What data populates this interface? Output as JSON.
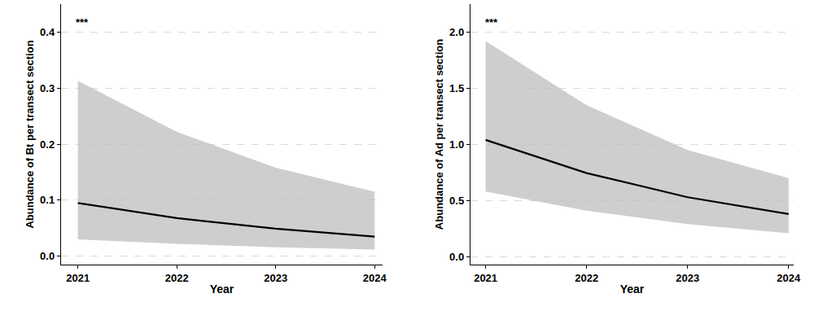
{
  "chart_data": [
    {
      "type": "line",
      "y_label": "Abundance of Bt per transect section",
      "x_label": "Year",
      "annotation": "***",
      "x": [
        2021,
        2022,
        2023,
        2024
      ],
      "xlim": [
        2020.83,
        2024.08
      ],
      "xticks": [
        2021,
        2022,
        2023,
        2024
      ],
      "ylim": [
        -0.015,
        0.45
      ],
      "yticks": [
        {
          "value": 0,
          "label": "0.0"
        },
        0.1,
        0.2,
        0.3,
        0.4
      ],
      "grid": true,
      "series": [
        {
          "color": "#000000",
          "values": [
            0.095,
            0.068,
            0.049,
            0.035
          ],
          "lower": [
            0.03,
            0.022,
            0.016,
            0.012
          ],
          "upper": [
            0.313,
            0.222,
            0.158,
            0.115
          ]
        }
      ]
    },
    {
      "type": "line",
      "y_label": "Abundance of Ad per transect section",
      "x_label": "Year",
      "annotation": "***",
      "x": [
        2021,
        2022,
        2023,
        2024
      ],
      "xlim": [
        2020.85,
        2024.05
      ],
      "xticks": [
        2021,
        2022,
        2023,
        2024
      ],
      "ylim": [
        -0.07,
        2.25
      ],
      "yticks": [
        {
          "value": 0,
          "label": "0.0"
        },
        0.5,
        {
          "value": 1,
          "label": "1.0"
        },
        1.5,
        {
          "value": 2,
          "label": "2.0"
        }
      ],
      "grid": true,
      "series": [
        {
          "color": "#000000",
          "values": [
            1.04,
            0.745,
            0.53,
            0.38
          ],
          "lower": [
            0.58,
            0.41,
            0.29,
            0.21
          ],
          "upper": [
            1.92,
            1.35,
            0.95,
            0.7
          ]
        }
      ]
    }
  ]
}
